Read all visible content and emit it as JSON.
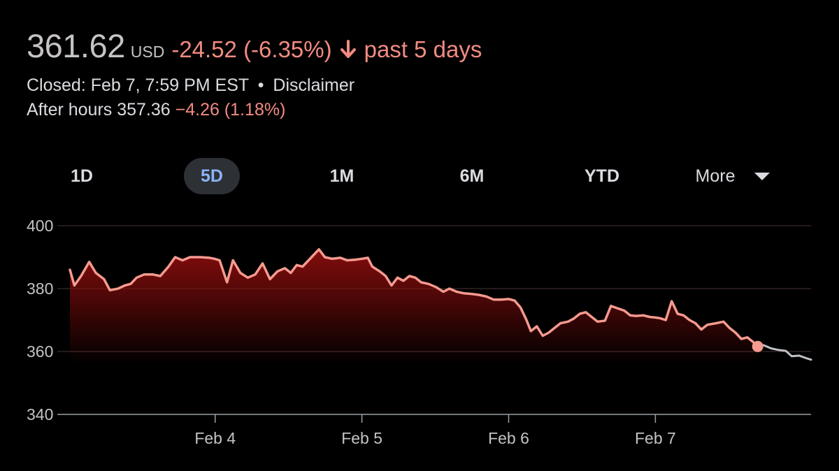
{
  "quote": {
    "price": "361.62",
    "currency": "USD",
    "change": "-24.52 (-6.35%)",
    "direction_icon": "arrow-down-icon",
    "period": "past 5 days",
    "status": "Closed: Feb 7, 7:59 PM EST",
    "separator": "•",
    "disclaimer": "Disclaimer",
    "after_hours_label": "After hours 357.36",
    "after_hours_change": "−4.26 (1.18%)"
  },
  "ranges": {
    "items": [
      "1D",
      "5D",
      "1M",
      "6M",
      "YTD",
      "More"
    ],
    "selected": "5D",
    "more_icon": "caret-down-icon"
  },
  "colors": {
    "background": "#000000",
    "negative": "#f28b82",
    "line": "#f59a8f",
    "fill_top": "#8b0d0d",
    "after_hours_line": "#bdc1c6",
    "gridline": "#4a3535",
    "selected_tab_bg": "#2d3035",
    "selected_tab_text": "#8ab4f8"
  },
  "chart_data": {
    "type": "area",
    "title": "",
    "xlabel": "",
    "ylabel": "",
    "ylim": [
      340,
      400
    ],
    "yticks": [
      400,
      380,
      360,
      340
    ],
    "xlim": [
      0,
      100
    ],
    "xticks": [
      {
        "x": 19.6,
        "label": "Feb 4"
      },
      {
        "x": 39.4,
        "label": "Feb 5"
      },
      {
        "x": 59.2,
        "label": "Feb 6"
      },
      {
        "x": 79.0,
        "label": "Feb 7"
      }
    ],
    "grid": true,
    "series": [
      {
        "values": [
          [
            0.0,
            386
          ],
          [
            0.6,
            381
          ],
          [
            1.5,
            384
          ],
          [
            2.6,
            388.5
          ],
          [
            3.5,
            385
          ],
          [
            4.6,
            383
          ],
          [
            5.4,
            379.5
          ],
          [
            6.5,
            380
          ],
          [
            7.4,
            381
          ],
          [
            8.2,
            381.5
          ],
          [
            9.0,
            383.5
          ],
          [
            10.0,
            384.5
          ],
          [
            11.2,
            384.5
          ],
          [
            12.2,
            384
          ],
          [
            13.3,
            387
          ],
          [
            14.2,
            390
          ],
          [
            15.2,
            389
          ],
          [
            16.2,
            390
          ],
          [
            17.6,
            390
          ],
          [
            18.8,
            389.8
          ],
          [
            19.5,
            389.5
          ],
          [
            20.2,
            389
          ],
          [
            21.2,
            382
          ],
          [
            22.0,
            389
          ],
          [
            23.0,
            385
          ],
          [
            24.0,
            383.5
          ],
          [
            25.0,
            384.5
          ],
          [
            26.0,
            388
          ],
          [
            27.0,
            383
          ],
          [
            28.0,
            385.5
          ],
          [
            29.0,
            386.5
          ],
          [
            29.8,
            385
          ],
          [
            30.6,
            387.5
          ],
          [
            31.4,
            387
          ],
          [
            32.2,
            389
          ],
          [
            33.0,
            391
          ],
          [
            33.6,
            392.5
          ],
          [
            34.4,
            390
          ],
          [
            35.4,
            389.5
          ],
          [
            36.5,
            389.8
          ],
          [
            37.4,
            389
          ],
          [
            38.5,
            389.2
          ],
          [
            39.4,
            389.5
          ],
          [
            40.2,
            389.8
          ],
          [
            40.8,
            387
          ],
          [
            41.8,
            385.5
          ],
          [
            42.6,
            384
          ],
          [
            43.4,
            381
          ],
          [
            44.2,
            383.5
          ],
          [
            45.0,
            382.5
          ],
          [
            45.8,
            384
          ],
          [
            46.6,
            383.5
          ],
          [
            47.4,
            382
          ],
          [
            48.4,
            381.5
          ],
          [
            49.4,
            380.5
          ],
          [
            50.4,
            379
          ],
          [
            51.2,
            380
          ],
          [
            52.2,
            379
          ],
          [
            53.2,
            378.5
          ],
          [
            54.2,
            378.3
          ],
          [
            55.2,
            378
          ],
          [
            56.2,
            377.5
          ],
          [
            57.2,
            376.5
          ],
          [
            58.2,
            376.5
          ],
          [
            59.2,
            376.7
          ],
          [
            60.0,
            376.2
          ],
          [
            60.8,
            374
          ],
          [
            61.6,
            370
          ],
          [
            62.2,
            366.5
          ],
          [
            63.0,
            368
          ],
          [
            63.8,
            365
          ],
          [
            64.6,
            366
          ],
          [
            65.4,
            367.5
          ],
          [
            66.2,
            369
          ],
          [
            67.2,
            369.5
          ],
          [
            68.0,
            370.5
          ],
          [
            68.8,
            372
          ],
          [
            69.6,
            372.5
          ],
          [
            70.4,
            371
          ],
          [
            71.2,
            369.5
          ],
          [
            72.2,
            369.8
          ],
          [
            73.0,
            374.5
          ],
          [
            73.8,
            373.8
          ],
          [
            74.8,
            373
          ],
          [
            75.6,
            371.5
          ],
          [
            76.4,
            371.3
          ],
          [
            77.4,
            371.5
          ],
          [
            78.2,
            371
          ],
          [
            79.0,
            370.8
          ],
          [
            79.6,
            370.6
          ],
          [
            80.4,
            370
          ],
          [
            81.2,
            376
          ],
          [
            82.0,
            372
          ],
          [
            82.8,
            371.5
          ],
          [
            83.6,
            370
          ],
          [
            84.4,
            369
          ],
          [
            85.2,
            367
          ],
          [
            86.0,
            368.5
          ],
          [
            87.2,
            369
          ],
          [
            88.2,
            369.5
          ],
          [
            89.0,
            367.5
          ],
          [
            89.8,
            366
          ],
          [
            90.6,
            364
          ],
          [
            91.4,
            364.5
          ],
          [
            92.2,
            363
          ],
          [
            92.8,
            361.6
          ]
        ]
      },
      {
        "values": [
          [
            92.8,
            361.6
          ],
          [
            93.6,
            362
          ],
          [
            94.6,
            361
          ],
          [
            95.6,
            360.5
          ],
          [
            96.6,
            360.2
          ],
          [
            97.4,
            358.5
          ],
          [
            98.4,
            358.7
          ],
          [
            99.2,
            358
          ],
          [
            100.0,
            357.4
          ]
        ]
      }
    ]
  }
}
